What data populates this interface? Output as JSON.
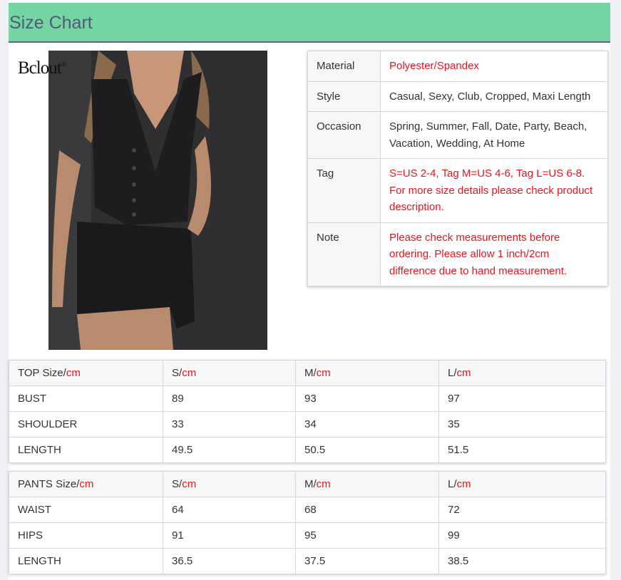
{
  "header": {
    "title": "Size Chart"
  },
  "brand": {
    "logo_text": "Bclout",
    "reg": "®"
  },
  "info": [
    {
      "label": "Material",
      "value": "Polyester/Spandex",
      "highlight": true
    },
    {
      "label": "Style",
      "value": "Casual, Sexy, Club, Cropped, Maxi Length",
      "highlight": false
    },
    {
      "label": "Occasion",
      "value": "Spring, Summer, Fall, Date, Party, Beach, Vacation, Wedding, At Home",
      "highlight": false
    },
    {
      "label": "Tag",
      "value": "S=US 2-4, Tag M=US 4-6, Tag L=US 6-8. For more size details please check product description.",
      "highlight": true
    },
    {
      "label": "Note",
      "value": "Please check measurements before ordering. Please allow 1 inch/2cm difference due to hand measurement.",
      "highlight": true
    }
  ],
  "unit": "cm",
  "colors": {
    "header_bg": "#74d5a3",
    "accent_red": "#e8151b"
  },
  "top_table": {
    "headers": [
      "TOP Size/",
      "S/",
      "M/",
      "L/"
    ],
    "rows": [
      [
        "BUST",
        "89",
        "93",
        "97"
      ],
      [
        "SHOULDER",
        "33",
        "34",
        "35"
      ],
      [
        "LENGTH",
        "49.5",
        "50.5",
        "51.5"
      ]
    ]
  },
  "pants_table": {
    "headers": [
      "PANTS Size/",
      "S/",
      "M/",
      "L/"
    ],
    "rows": [
      [
        "WAIST",
        "64",
        "68",
        "72"
      ],
      [
        "HIPS",
        "91",
        "95",
        "99"
      ],
      [
        "LENGTH",
        "36.5",
        "37.5",
        "38.5"
      ]
    ]
  }
}
